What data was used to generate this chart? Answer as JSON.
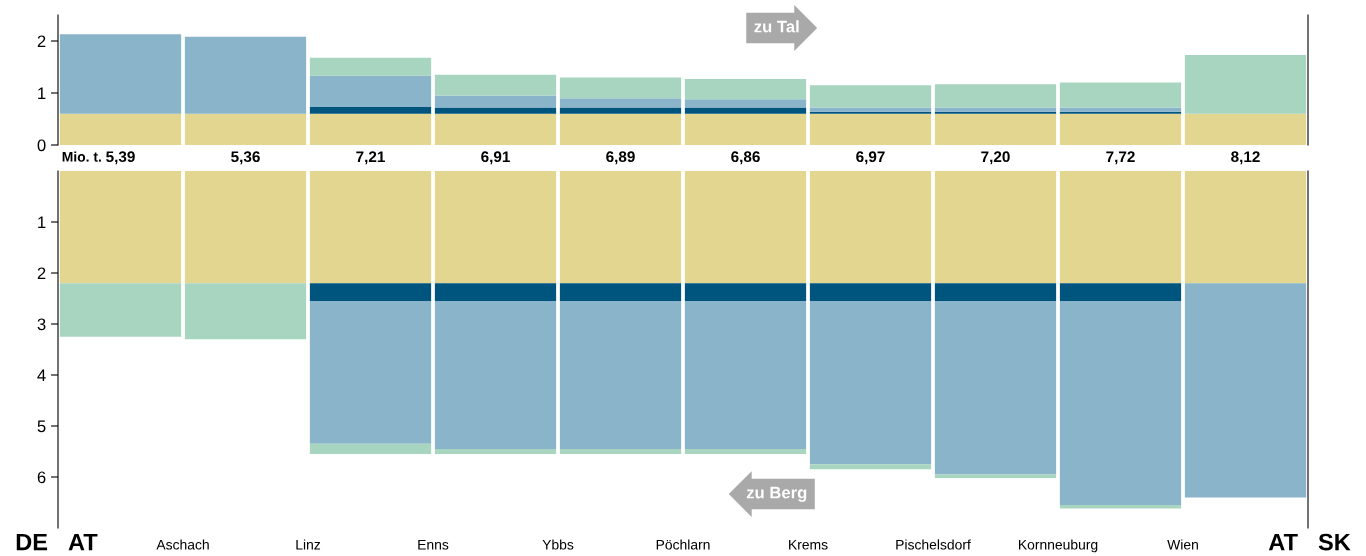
{
  "chart_data": [
    {
      "type": "bar",
      "stacked": true,
      "categories": [
        null,
        null,
        null,
        null,
        null,
        null,
        null,
        null,
        null,
        null
      ],
      "ylim": [
        0,
        2.5
      ],
      "yticks": [
        0,
        1,
        2
      ],
      "tick_labels": "y",
      "series": [
        {
          "color": "#e3d691",
          "values": [
            0.6,
            0.6,
            0.6,
            0.6,
            0.6,
            0.6,
            0.6,
            0.6,
            0.6,
            0.6
          ]
        },
        {
          "color": "#00557f",
          "values": [
            null,
            null,
            0.13,
            0.12,
            0.12,
            0.12,
            0.04,
            0.04,
            0.04,
            null
          ]
        },
        {
          "color": "#8ab4c9",
          "values": [
            1.53,
            1.48,
            0.6,
            0.23,
            0.18,
            0.16,
            0.08,
            0.08,
            0.08,
            null
          ]
        },
        {
          "color": "#a8d5c0",
          "values": [
            null,
            null,
            0.35,
            0.4,
            0.4,
            0.39,
            0.43,
            0.45,
            0.48,
            1.13
          ]
        }
      ],
      "annotations": [
        "zu Tal",
        "Mio. t.",
        "5,39",
        "5,36",
        "7,21",
        "6,91",
        "6,89",
        "6,86",
        "6,97",
        "7,20",
        "7,72",
        "8,12"
      ]
    },
    {
      "type": "bar",
      "stacked": true,
      "categories": [
        null,
        null,
        null,
        null,
        null,
        null,
        null,
        null,
        null,
        null
      ],
      "ylim": [
        7,
        0
      ],
      "yticks": [
        1,
        2,
        3,
        4,
        5,
        6
      ],
      "tick_labels": "y",
      "series": [
        {
          "color": "#e3d691",
          "values": [
            2.2,
            2.2,
            2.2,
            2.2,
            2.2,
            2.2,
            2.2,
            2.2,
            2.2,
            2.2
          ]
        },
        {
          "color": "#00557f",
          "values": [
            null,
            null,
            0.35,
            0.35,
            0.35,
            0.35,
            0.35,
            0.35,
            0.35,
            null
          ]
        },
        {
          "color": "#8ab4c9",
          "values": [
            null,
            null,
            2.8,
            2.9,
            2.9,
            2.9,
            3.2,
            3.4,
            4.0,
            4.2
          ]
        },
        {
          "color": "#a8d5c0",
          "values": [
            1.05,
            1.1,
            0.2,
            0.1,
            0.1,
            0.1,
            0.1,
            0.07,
            0.07,
            null
          ]
        }
      ],
      "annotations": [
        "zu Berg",
        "DE",
        "AT",
        "AT",
        "SK",
        "Aschach",
        "Linz",
        "Enns",
        "Ybbs",
        "Pöchlarn",
        "Krems",
        "Pischelsdorf",
        "Kornneuburg",
        "Wien"
      ]
    }
  ]
}
